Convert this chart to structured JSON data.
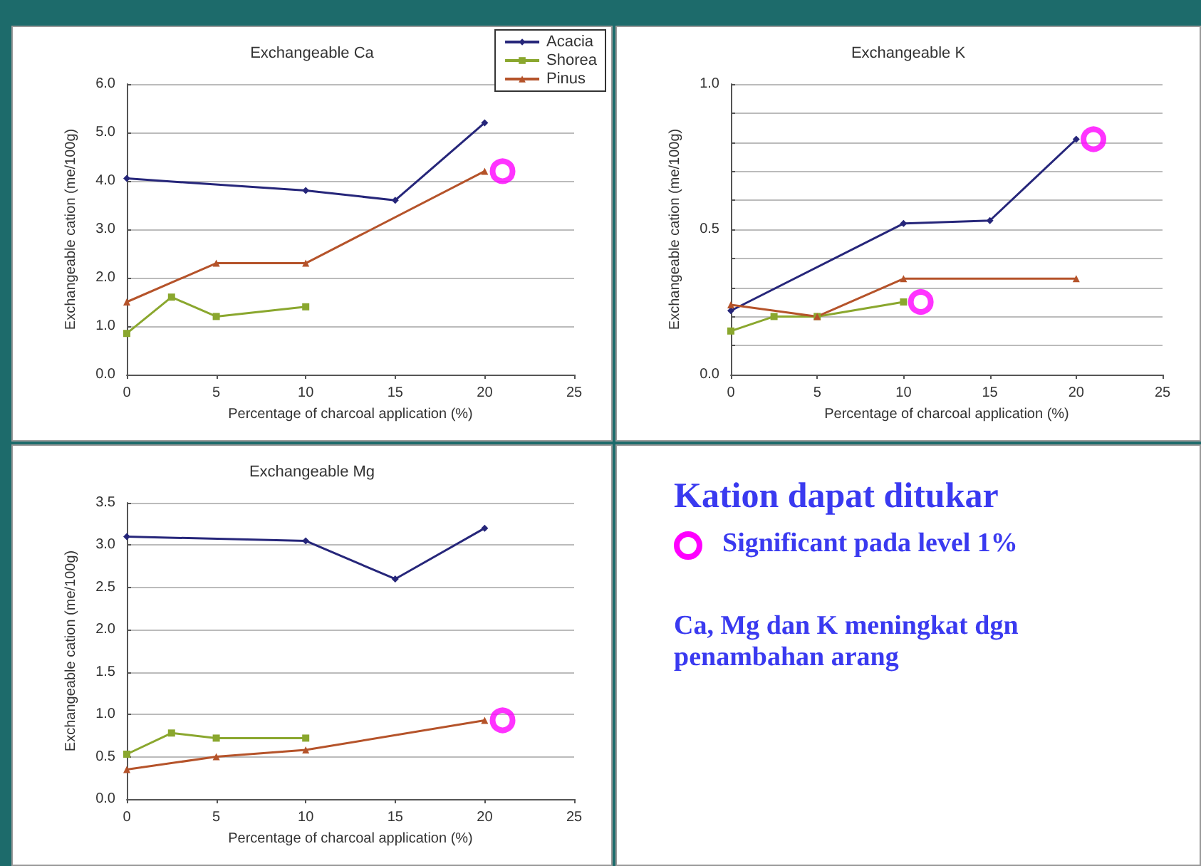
{
  "chart_data": [
    {
      "type": "line",
      "title": "Exchangeable Ca",
      "xlabel": "Percentage of charcoal application (%)",
      "ylabel": "Exchangeable cation (me/100g)",
      "xlim": [
        0,
        25
      ],
      "xticks": [
        0,
        5,
        10,
        15,
        20,
        25
      ],
      "ylim": [
        0,
        6
      ],
      "yticks": [
        {
          "value": 0,
          "label": "0.0"
        },
        {
          "value": 1,
          "label": "1.0"
        },
        {
          "value": 2,
          "label": "2.0"
        },
        {
          "value": 3,
          "label": "3.0"
        },
        {
          "value": 4,
          "label": "4.0"
        },
        {
          "value": 5,
          "label": "5.0"
        },
        {
          "value": 6,
          "label": "6.0"
        }
      ],
      "grid": "y",
      "legend": "top right",
      "series": [
        {
          "name": "Acacia",
          "color": "#26267a",
          "marker": "diamond",
          "x": [
            0,
            10,
            15,
            20
          ],
          "values": [
            4.05,
            3.8,
            3.6,
            5.2
          ]
        },
        {
          "name": "Shorea",
          "color": "#8aa72e",
          "marker": "square",
          "x": [
            0,
            2.5,
            5,
            10
          ],
          "values": [
            0.85,
            1.6,
            1.2,
            1.4
          ]
        },
        {
          "name": "Pinus",
          "color": "#b5532a",
          "marker": "triangle",
          "x": [
            0,
            5,
            10,
            20
          ],
          "values": [
            1.5,
            2.3,
            2.3,
            4.2
          ]
        },
        {
          "type": "scatter",
          "color": "#ff00ff",
          "marker": "circle",
          "x": [
            21
          ],
          "values": [
            4.2
          ]
        }
      ]
    },
    {
      "type": "line",
      "title": "Exchangeable K",
      "xlabel": "Percentage of charcoal application (%)",
      "ylabel": "Exchangeable cation (me/100g)",
      "xlim": [
        0,
        25
      ],
      "xticks": [
        0,
        5,
        10,
        15,
        20,
        25
      ],
      "ylim": [
        0,
        1
      ],
      "yticks": [
        {
          "value": 0,
          "label": "0.0"
        },
        {
          "value": 0.1,
          "label": null
        },
        {
          "value": 0.2,
          "label": null
        },
        {
          "value": 0.3,
          "label": null
        },
        {
          "value": 0.4,
          "label": null
        },
        {
          "value": 0.5,
          "label": "0.5"
        },
        {
          "value": 0.6,
          "label": null
        },
        {
          "value": 0.7,
          "label": null
        },
        {
          "value": 0.8,
          "label": null
        },
        {
          "value": 0.9,
          "label": null
        },
        {
          "value": 1,
          "label": "1.0"
        }
      ],
      "grid": "y",
      "series": [
        {
          "color": "#26267a",
          "marker": "diamond",
          "x": [
            0,
            10,
            15,
            20
          ],
          "values": [
            0.22,
            0.52,
            0.53,
            0.81
          ]
        },
        {
          "color": "#8aa72e",
          "marker": "square",
          "x": [
            0,
            2.5,
            5,
            10
          ],
          "values": [
            0.15,
            0.2,
            0.2,
            0.25
          ]
        },
        {
          "color": "#b5532a",
          "marker": "triangle",
          "x": [
            0,
            5,
            10,
            20
          ],
          "values": [
            0.24,
            0.2,
            0.33,
            0.33
          ]
        },
        {
          "type": "scatter",
          "color": "#ff00ff",
          "marker": "circle",
          "x": [
            21,
            11
          ],
          "values": [
            0.81,
            0.25
          ]
        }
      ]
    },
    {
      "type": "line",
      "title": "Exchangeable Mg",
      "xlabel": "Percentage of charcoal application (%)",
      "ylabel": "Exchangeable cation (me/100g)",
      "xlim": [
        0,
        25
      ],
      "xticks": [
        0,
        5,
        10,
        15,
        20,
        25
      ],
      "ylim": [
        0,
        3.5
      ],
      "yticks": [
        {
          "value": 0,
          "label": "0.0"
        },
        {
          "value": 0.5,
          "label": "0.5"
        },
        {
          "value": 1,
          "label": "1.0"
        },
        {
          "value": 1.5,
          "label": "1.5"
        },
        {
          "value": 2,
          "label": "2.0"
        },
        {
          "value": 2.5,
          "label": "2.5"
        },
        {
          "value": 3,
          "label": "3.0"
        },
        {
          "value": 3.5,
          "label": "3.5"
        }
      ],
      "grid": "y",
      "series": [
        {
          "color": "#26267a",
          "marker": "diamond",
          "x": [
            0,
            10,
            15,
            20
          ],
          "values": [
            3.1,
            3.05,
            2.6,
            3.2
          ]
        },
        {
          "color": "#8aa72e",
          "marker": "square",
          "x": [
            0,
            2.5,
            5,
            10
          ],
          "values": [
            0.53,
            0.78,
            0.72,
            0.72
          ]
        },
        {
          "color": "#b5532a",
          "marker": "triangle",
          "x": [
            0,
            5,
            10,
            20
          ],
          "values": [
            0.35,
            0.5,
            0.58,
            0.93
          ]
        },
        {
          "type": "scatter",
          "color": "#ff00ff",
          "marker": "circle",
          "x": [
            21
          ],
          "values": [
            0.93
          ]
        }
      ]
    },
    {
      "type": "other",
      "title": "Kation dapat ditukar",
      "annotations": [
        "Significant pada level 1%",
        "Ca, Mg dan K meningkat dgn penambahan arang"
      ]
    }
  ]
}
